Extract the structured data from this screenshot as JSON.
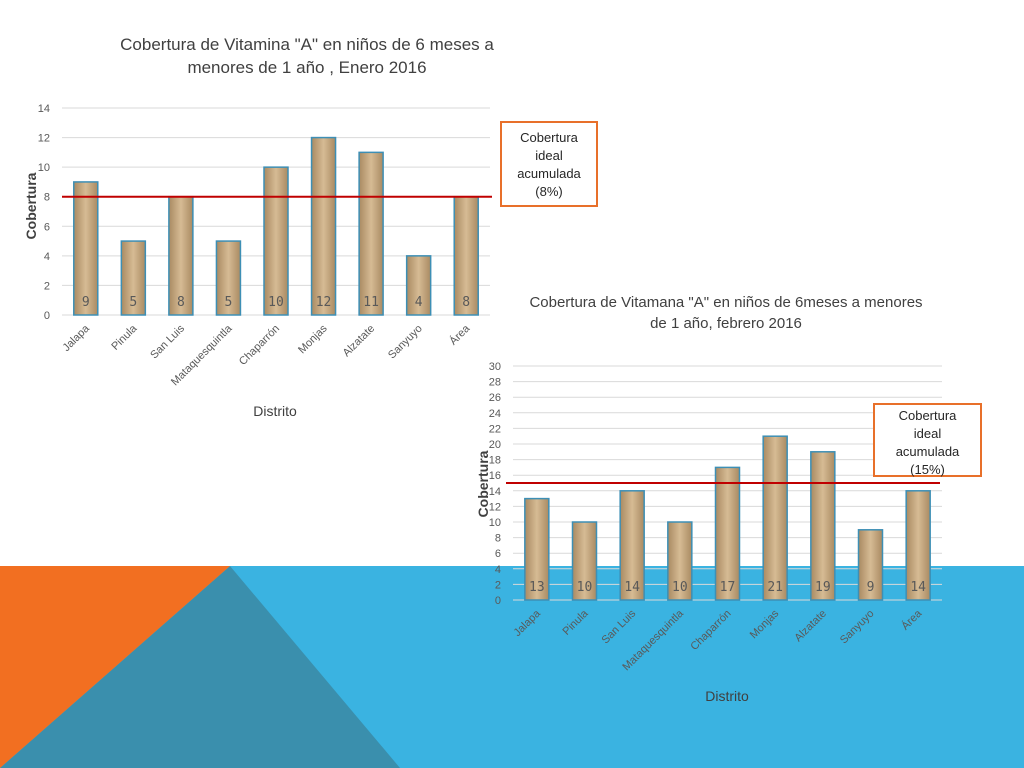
{
  "theme": {
    "orange": "#f26f21",
    "blue": "#3ab3e1",
    "darkblue": "#3a8fad",
    "bar_fill": "#c8a97e",
    "bar_edge": "#3d8fb5",
    "target_line": "#c00000",
    "callout_border": "#e8702a"
  },
  "chart_data": [
    {
      "type": "bar",
      "title": "Cobertura de Vitamina \"A\" en niños de 6 meses a menores de 1 año , Enero 2016",
      "xlabel": "Distrito",
      "ylabel": "Cobertura",
      "categories": [
        "Jalapa",
        "Pinula",
        "San Luis",
        "Mataquesquintla",
        "Chaparrón",
        "Monjas",
        "Alzatate",
        "Sanyuyo",
        "Área"
      ],
      "values": [
        9,
        5,
        8,
        5,
        10,
        12,
        11,
        4,
        8
      ],
      "ylim": [
        0,
        14
      ],
      "yticks": [
        "0",
        "2",
        "4",
        "6",
        "8",
        "10",
        "12",
        "14"
      ],
      "grid": true,
      "reference_line": {
        "value": 8,
        "label": "Cobertura ideal acumulada (8%)"
      }
    },
    {
      "type": "bar",
      "title": "Cobertura de Vitamana \"A\" en niños de 6meses a menores de 1 año, febrero 2016",
      "xlabel": "Distrito",
      "ylabel": "Cobertura",
      "categories": [
        "Jalapa",
        "Pinula",
        "San Luis",
        "Mataquesquintla",
        "Chaparrón",
        "Monjas",
        "Alzatate",
        "Sanyuyo",
        "Área"
      ],
      "values": [
        13,
        10,
        14,
        10,
        17,
        21,
        19,
        9,
        14
      ],
      "ylim": [
        0,
        30
      ],
      "yticks": [
        "0",
        "2",
        "4",
        "6",
        "8",
        "10",
        "12",
        "14",
        "16",
        "18",
        "20",
        "22",
        "24",
        "26",
        "28",
        "30"
      ],
      "grid": true,
      "reference_line": {
        "value": 15,
        "label": "Cobertura ideal acumulada (15%)"
      }
    }
  ],
  "callouts": [
    {
      "lines": [
        "Cobertura",
        "ideal",
        "acumulada",
        "(8%)"
      ]
    },
    {
      "lines": [
        "Cobertura",
        "ideal",
        "acumulada",
        "(15%)"
      ]
    }
  ]
}
